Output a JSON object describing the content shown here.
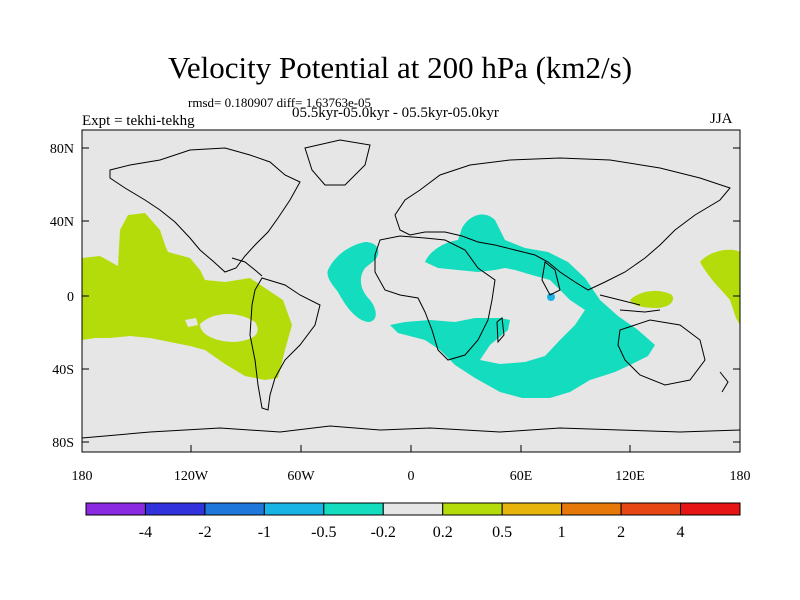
{
  "title": "Velocity Potential at 200 hPa (km2/s)",
  "stats": "rmsd= 0.180907 diff= 1.63763e-05",
  "expt": "Expt = tekhi-tekhg",
  "period": "05.5kyr-05.0kyr - 05.5kyr-05.0kyr",
  "season": "JJA",
  "y_ticks": [
    "80N",
    "40N",
    "0",
    "40S",
    "80S"
  ],
  "x_ticks": [
    "180",
    "120W",
    "60W",
    "0",
    "60E",
    "120E",
    "180"
  ],
  "colorbar": {
    "labels": [
      "-4",
      "-2",
      "-1",
      "-0.5",
      "-0.2",
      "0.2",
      "0.5",
      "1",
      "2",
      "4"
    ],
    "colors": [
      "#8a2be2",
      "#3232dc",
      "#1e78dc",
      "#19b4e6",
      "#14dcbe",
      "#e6e6e6",
      "#b4dc0a",
      "#e6b40a",
      "#e6780a",
      "#e64614",
      "#e61414"
    ]
  },
  "fill_colors": {
    "land_bg": "#e6e6e6",
    "positive_light": "#b4dc0a",
    "negative_light": "#14dcbe",
    "negative_mid": "#19b4e6"
  }
}
